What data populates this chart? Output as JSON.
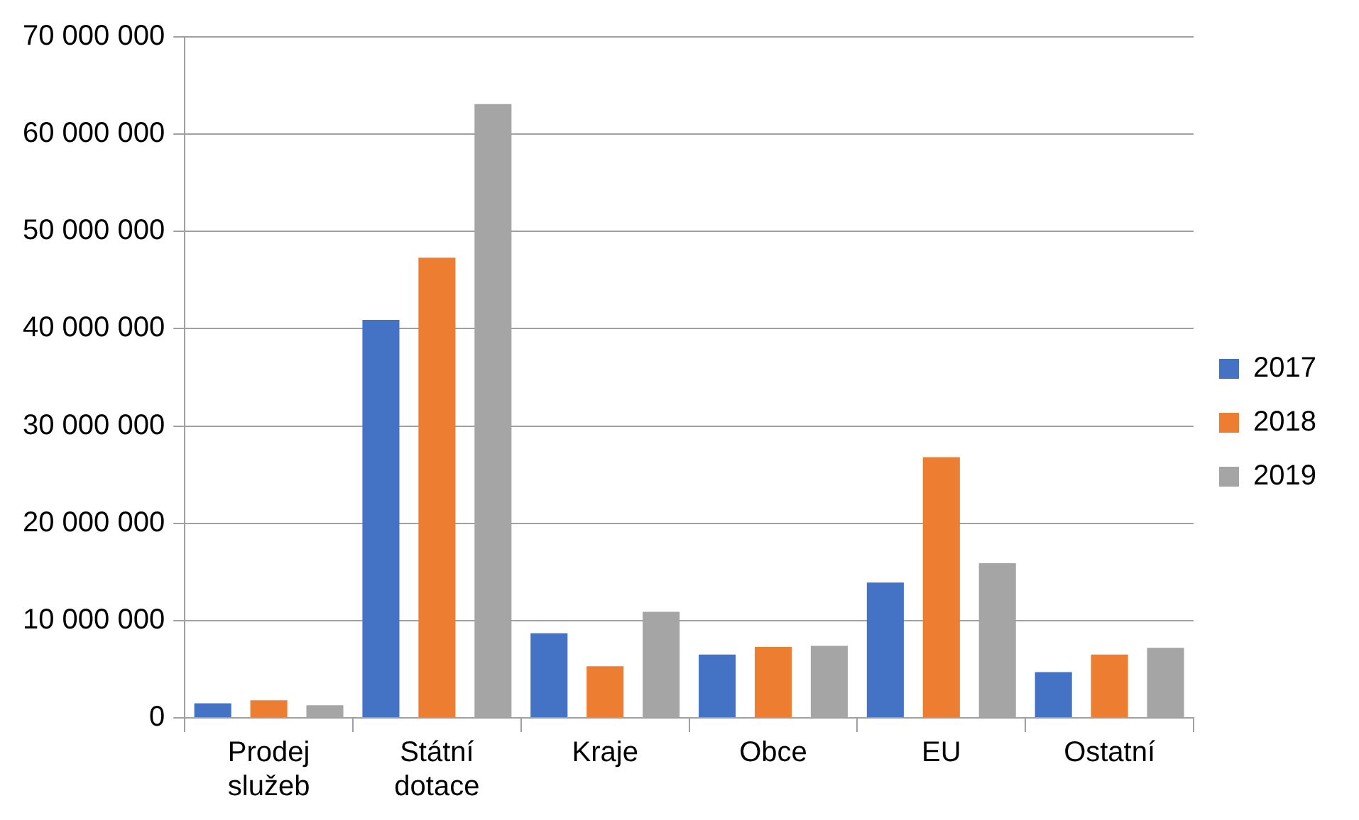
{
  "chart_data": {
    "type": "bar",
    "categories": [
      "Prodej služeb",
      "Státní dotace",
      "Kraje",
      "Obce",
      "EU",
      "Ostatní"
    ],
    "series": [
      {
        "name": "2017",
        "color": "#4472c4",
        "values": [
          1500000,
          40900000,
          8700000,
          6500000,
          13900000,
          4700000
        ]
      },
      {
        "name": "2018",
        "color": "#ed7d31",
        "values": [
          1800000,
          47300000,
          5300000,
          7300000,
          26800000,
          6500000
        ]
      },
      {
        "name": "2019",
        "color": "#a5a5a5",
        "values": [
          1300000,
          63100000,
          10900000,
          7400000,
          15900000,
          7200000
        ]
      }
    ],
    "ylim": [
      0,
      70000000
    ],
    "yticks": [
      {
        "value": 0,
        "label": "0"
      },
      {
        "value": 10000000,
        "label": "10 000 000"
      },
      {
        "value": 20000000,
        "label": "20 000 000"
      },
      {
        "value": 30000000,
        "label": "30 000 000"
      },
      {
        "value": 40000000,
        "label": "40 000 000"
      },
      {
        "value": 50000000,
        "label": "50 000 000"
      },
      {
        "value": 60000000,
        "label": "60 000 000"
      },
      {
        "value": 70000000,
        "label": "70 000 000"
      }
    ],
    "grid": "y",
    "legend": "right"
  }
}
